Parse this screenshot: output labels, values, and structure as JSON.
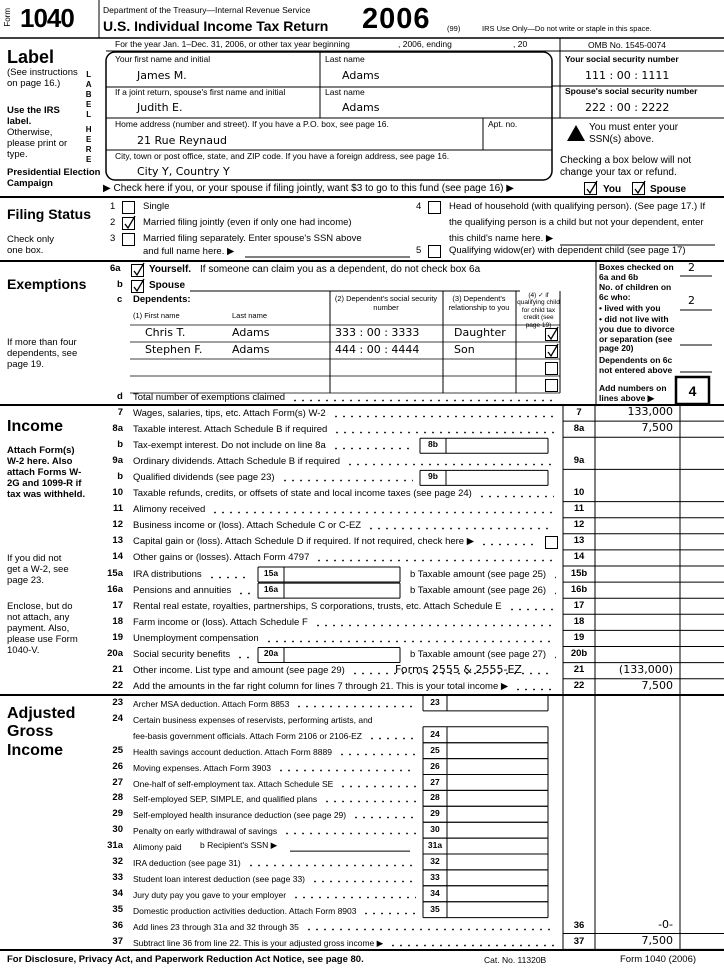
{
  "header": {
    "form_word": "Form",
    "form_number": "1040",
    "department": "Department of the Treasury—Internal Revenue Service",
    "title": "U.S. Individual Income Tax Return",
    "year": "2006",
    "code": "(99)",
    "irs_use": "IRS Use Only—Do not write or staple in this space.",
    "period": "For the year Jan. 1–Dec. 31, 2006, or other tax year beginning",
    "ending": ", 2006, ending",
    "century": ", 20",
    "omb": "OMB No. 1545-0074"
  },
  "label": {
    "title": "Label",
    "see": "(See instructions on page 16.)",
    "use": "Use the IRS label.",
    "otherwise": "Otherwise, please print or type.",
    "side_top": "LABEL",
    "side_bottom": "HERE",
    "campaign": "Presidential Election Campaign"
  },
  "name_fields": {
    "first_label": "Your first name and initial",
    "last_label": "Last name",
    "first": "James M.",
    "last": "Adams",
    "spouse_first_label": "If a joint return, spouse's first name and initial",
    "spouse_last_label": "Last name",
    "spouse_first": "Judith E.",
    "spouse_last": "Adams",
    "address_label": "Home address (number and street). If you have a P.O. box, see page 16.",
    "apt_label": "Apt. no.",
    "address": "21 Rue Reynaud",
    "city_label": "City, town or post office, state, and ZIP code. If you have a foreign address, see page 16.",
    "city": "City Y, Country Y"
  },
  "ssn": {
    "your_label": "Your social security number",
    "your": "111 : 00 : 1111",
    "spouse_label": "Spouse's social security number",
    "spouse": "222 : 00 : 2222",
    "warning": "You must enter your SSN(s) above.",
    "checking": "Checking a box below will not change your tax or refund."
  },
  "campaign": {
    "text": "▶ Check here if you, or your spouse if filing jointly, want $3 to go to this fund (see page 16) ▶",
    "you": "You",
    "spouse": "Spouse",
    "you_checked": true,
    "spouse_checked": true
  },
  "filing_status": {
    "title": "Filing Status",
    "note": "Check only one box.",
    "options": [
      {
        "num": "1",
        "text": "Single"
      },
      {
        "num": "2",
        "text": "Married filing jointly (even if only one had income)",
        "checked": true
      },
      {
        "num": "3",
        "text": "Married filing separately. Enter spouse's SSN above",
        "text2": "and full name here. ▶"
      },
      {
        "num": "4",
        "text": "Head of household (with qualifying person). (See page 17.) If",
        "text2": "the qualifying person is a child but not your dependent, enter",
        "text3": "this child's name here. ▶"
      },
      {
        "num": "5",
        "text": "Qualifying widow(er) with dependent child (see page 17)"
      }
    ]
  },
  "exemptions": {
    "title": "Exemptions",
    "note": "If more than four dependents, see page 19.",
    "a_num": "6a",
    "a_bold": "Yourself.",
    "a_text": "If someone can claim you as a dependent, do not check box 6a",
    "a_checked": true,
    "b_num": "b",
    "b_text": "Spouse",
    "b_checked": true,
    "c_num": "c",
    "c_title": "Dependents:",
    "col1": "(1) First name",
    "col1b": "Last name",
    "col2": "(2) Dependent's social security number",
    "col3": "(3) Dependent's relationship to you",
    "col4": "(4) ✓ if qualifying child for child tax credit (see page 19)",
    "dependents": [
      {
        "first": "Chris T.",
        "last": "Adams",
        "ssn": "333 : 00 : 3333",
        "relationship": "Daughter",
        "checked": true
      },
      {
        "first": "Stephen F.",
        "last": "Adams",
        "ssn": "444 : 00 : 4444",
        "relationship": "Son",
        "checked": true
      }
    ],
    "d_num": "d",
    "d_text": "Total number of exemptions claimed",
    "side": {
      "boxes_checked": "Boxes checked on 6a and 6b",
      "boxes_value": "2",
      "children": "No. of children on 6c who:",
      "lived": "• lived with you",
      "lived_value": "2",
      "not_lived": "• did not live with you due to divorce or separation (see page 20)",
      "not_entered": "Dependents on 6c not entered above",
      "add": "Add numbers on lines above ▶",
      "total": "4"
    }
  },
  "income": {
    "title": "Income",
    "notes": [
      "Attach Form(s) W-2 here. Also attach Forms W-2G and 1099-R if tax was withheld.",
      "If you did not get a W-2, see page 23.",
      "Enclose, but do not attach, any payment. Also, please use Form 1040-V."
    ],
    "lines": [
      {
        "num": "7",
        "text": "Wages, salaries, tips, etc. Attach Form(s) W-2",
        "col": "7",
        "amount": "133,000"
      },
      {
        "num": "8a",
        "text": "Taxable interest. Attach Schedule B if required",
        "col": "8a",
        "amount": "7,500"
      },
      {
        "num": "b",
        "text": "Tax-exempt interest. Do not include on line 8a",
        "box": "8b"
      },
      {
        "num": "9a",
        "text": "Ordinary dividends. Attach Schedule B if required",
        "col": "9a"
      },
      {
        "num": "b",
        "text": "Qualified dividends (see page 23)",
        "box": "9b"
      },
      {
        "num": "10",
        "text": "Taxable refunds, credits, or offsets of state and local income taxes (see page 24)",
        "col": "10"
      },
      {
        "num": "11",
        "text": "Alimony received",
        "col": "11"
      },
      {
        "num": "12",
        "text": "Business income or (loss). Attach Schedule C or C-EZ",
        "col": "12"
      },
      {
        "num": "13",
        "text": "Capital gain or (loss). Attach Schedule D if required. If not required, check here ▶",
        "col": "13"
      },
      {
        "num": "14",
        "text": "Other gains or (losses). Attach Form 4797",
        "col": "14"
      },
      {
        "num": "15a",
        "text": "IRA distributions",
        "box": "15a",
        "b_text": "b Taxable amount (see page 25)",
        "col": "15b"
      },
      {
        "num": "16a",
        "text": "Pensions and annuities",
        "box": "16a",
        "b_text": "b Taxable amount (see page 26)",
        "col": "16b"
      },
      {
        "num": "17",
        "text": "Rental real estate, royalties, partnerships, S corporations, trusts, etc. Attach Schedule E",
        "col": "17"
      },
      {
        "num": "18",
        "text": "Farm income or (loss). Attach Schedule F",
        "col": "18"
      },
      {
        "num": "19",
        "text": "Unemployment compensation",
        "col": "19"
      },
      {
        "num": "20a",
        "text": "Social security benefits",
        "box": "20a",
        "b_text": "b Taxable amount (see page 27)",
        "col": "20b"
      },
      {
        "num": "21",
        "text": "Other income. List type and amount (see page 29)",
        "entry": "Forms 2555 & 2555-EZ",
        "col": "21",
        "amount": "(133,000)"
      },
      {
        "num": "22",
        "text": "Add the amounts in the far right column for lines 7 through 21. This is your total income ▶",
        "col": "22",
        "amount": "7,500"
      }
    ]
  },
  "agi": {
    "title": "Adjusted Gross Income",
    "lines": [
      {
        "num": "23",
        "text": "Archer MSA deduction. Attach Form 8853",
        "box": "23"
      },
      {
        "num": "24",
        "text": "Certain business expenses of reservists, performing artists, and",
        "text2": "fee-basis government officials. Attach Form 2106 or 2106-EZ",
        "box": "24"
      },
      {
        "num": "25",
        "text": "Health savings account deduction. Attach Form 8889",
        "box": "25"
      },
      {
        "num": "26",
        "text": "Moving expenses. Attach Form 3903",
        "box": "26"
      },
      {
        "num": "27",
        "text": "One-half of self-employment tax. Attach Schedule SE",
        "box": "27"
      },
      {
        "num": "28",
        "text": "Self-employed SEP, SIMPLE, and qualified plans",
        "box": "28"
      },
      {
        "num": "29",
        "text": "Self-employed health insurance deduction (see page 29)",
        "box": "29"
      },
      {
        "num": "30",
        "text": "Penalty on early withdrawal of savings",
        "box": "30"
      },
      {
        "num": "31a",
        "text": "Alimony paid",
        "b_text": "b Recipient's SSN ▶",
        "box": "31a"
      },
      {
        "num": "32",
        "text": "IRA deduction (see page 31)",
        "box": "32"
      },
      {
        "num": "33",
        "text": "Student loan interest deduction (see page 33)",
        "box": "33"
      },
      {
        "num": "34",
        "text": "Jury duty pay you gave to your employer",
        "box": "34"
      },
      {
        "num": "35",
        "text": "Domestic production activities deduction. Attach Form 8903",
        "box": "35"
      },
      {
        "num": "36",
        "text": "Add lines 23 through 31a and 32 through 35",
        "col": "36",
        "amount": "-0-"
      },
      {
        "num": "37",
        "text": "Subtract line 36 from line 22. This is your adjusted gross income ▶",
        "col": "37",
        "amount": "7,500"
      }
    ]
  },
  "footer": {
    "notice": "For Disclosure, Privacy Act, and Paperwork Reduction Act Notice, see page 80.",
    "cat": "Cat. No. 11320B",
    "form": "Form 1040 (2006)"
  }
}
